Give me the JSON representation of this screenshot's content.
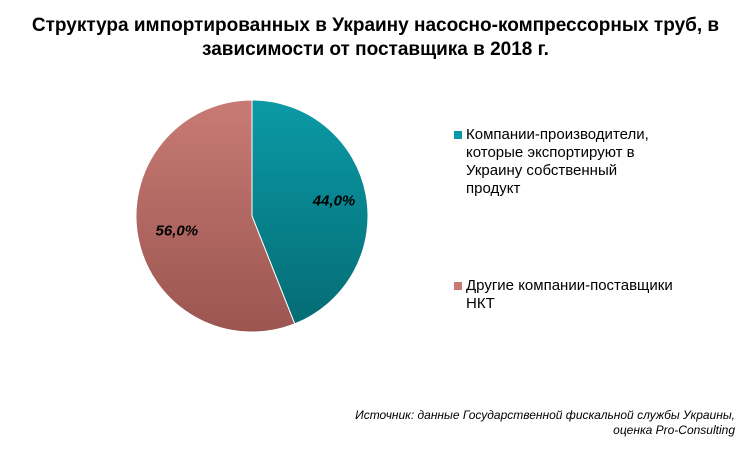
{
  "title_lines": [
    "Структура импортированных в Украину насосно-компрессорных труб, в",
    "зависимости от поставщика в 2018 г."
  ],
  "chart_data": {
    "type": "pie",
    "title": "Структура импортированных в Украину насосно-компрессорных труб, в зависимости от поставщика в 2018 г.",
    "slices": [
      {
        "label_lines": [
          "Компании-производители,",
          "которые экспортируют в",
          "Украину собственный",
          "продукт"
        ],
        "value": 44.0,
        "value_label": "44,0%",
        "color": "#0A9AA6",
        "color_dark": "#056C75"
      },
      {
        "label_lines": [
          "Другие компании-поставщики",
          "НКТ"
        ],
        "value": 56.0,
        "value_label": "56,0%",
        "color": "#C87B74",
        "color_dark": "#9B5550"
      }
    ],
    "start_angle_deg": 0,
    "direction": "clockwise",
    "legend_position": "right",
    "data_labels": "inside"
  },
  "source_lines": [
    "Источник: данные Государственной фискальной службы Украины,",
    "оценка Pro-Consulting"
  ]
}
